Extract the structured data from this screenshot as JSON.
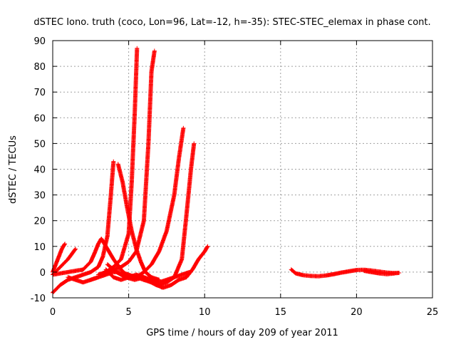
{
  "chart_data": {
    "type": "scatter",
    "title": "dSTEC Iono. truth (coco, Lon=96, Lat=-12, h=-35): STEC-STEC_elemax in phase cont.",
    "xlabel": "GPS time / hours of day 209 of year 2011",
    "ylabel": "dSTEC  / TECUs",
    "xlim": [
      0,
      25
    ],
    "ylim": [
      -10,
      90
    ],
    "xticks": [
      0,
      5,
      10,
      15,
      20,
      25
    ],
    "xtick_labels": [
      "0",
      "5",
      "10",
      "15",
      "20",
      "25"
    ],
    "yticks": [
      -10,
      0,
      10,
      20,
      30,
      40,
      50,
      60,
      70,
      80,
      90
    ],
    "ytick_labels": [
      "-10",
      "0",
      "10",
      "20",
      "30",
      "40",
      "50",
      "60",
      "70",
      "80",
      "90"
    ],
    "grid": true,
    "marker": "+",
    "color": "#ff0000",
    "series": [
      {
        "x": [
          0.0,
          0.2,
          0.4,
          0.6,
          0.8
        ],
        "y": [
          0,
          3,
          6,
          9,
          11
        ]
      },
      {
        "x": [
          0.0,
          0.5,
          1.0,
          1.5
        ],
        "y": [
          -1,
          2,
          5,
          9
        ]
      },
      {
        "x": [
          0.0,
          0.5,
          1.0,
          1.5,
          2.0,
          2.5,
          3.0,
          3.3,
          3.6,
          3.8,
          4.0
        ],
        "y": [
          -8,
          -5,
          -3,
          -2,
          -1,
          0,
          2,
          6,
          14,
          28,
          43
        ]
      },
      {
        "x": [
          0.0,
          1.0,
          2.0,
          2.5,
          2.8,
          3.0,
          3.2,
          3.5,
          4.0,
          4.5,
          5.0,
          5.5
        ],
        "y": [
          -1,
          0,
          1,
          4,
          8,
          11,
          13,
          10,
          5,
          1,
          -2,
          -2
        ]
      },
      {
        "x": [
          1.0,
          1.5,
          2.0,
          2.5,
          3.0,
          3.5,
          4.0,
          4.5,
          5.0,
          5.5,
          6.0,
          7.0
        ],
        "y": [
          -2,
          -3,
          -4,
          -3,
          -2,
          -1,
          0,
          0,
          -1,
          -2,
          -3,
          -3
        ]
      },
      {
        "x": [
          3.5,
          4.0,
          4.5,
          5.0,
          5.5,
          6.0,
          6.5,
          7.0,
          7.5,
          8.0,
          8.5,
          9.0
        ],
        "y": [
          1,
          -2,
          -3,
          -2,
          -1,
          -2,
          -3,
          -4,
          -3,
          -2,
          -1,
          0
        ]
      },
      {
        "x": [
          4.3,
          4.6,
          4.9,
          5.2,
          5.5,
          5.8,
          6.1,
          6.5,
          7.0
        ],
        "y": [
          42,
          35,
          25,
          16,
          9,
          4,
          0,
          -2,
          -3
        ]
      },
      {
        "x": [
          2.5,
          3.0,
          3.5,
          4.0,
          4.5,
          5.0,
          5.2,
          5.4,
          5.55
        ],
        "y": [
          -3,
          -2,
          0,
          2,
          5,
          15,
          35,
          62,
          87
        ]
      },
      {
        "x": [
          3.0,
          3.5,
          4.0,
          4.5,
          5.0,
          5.5,
          6.0,
          6.3,
          6.5,
          6.7
        ],
        "y": [
          -1,
          0,
          1,
          2,
          4,
          8,
          20,
          50,
          78,
          86
        ]
      },
      {
        "x": [
          5.5,
          6.0,
          6.5,
          7.0,
          7.5,
          8.0,
          8.3,
          8.6
        ],
        "y": [
          -2,
          0,
          3,
          8,
          16,
          30,
          44,
          56
        ]
      },
      {
        "x": [
          6.0,
          6.5,
          7.0,
          7.5,
          8.0,
          8.5,
          8.8,
          9.1,
          9.3
        ],
        "y": [
          -3,
          -4,
          -5,
          -4,
          -2,
          5,
          22,
          40,
          50
        ]
      },
      {
        "x": [
          6.2,
          6.8,
          7.3,
          7.8,
          8.3,
          8.8,
          9.2,
          9.6,
          10.0,
          10.2
        ],
        "y": [
          -3,
          -5,
          -6,
          -5,
          -3,
          -2,
          1,
          5,
          8,
          10
        ]
      },
      {
        "x": [
          3.6,
          4.2,
          4.8,
          5.4,
          6.0,
          6.6,
          7.2
        ],
        "y": [
          3,
          0,
          -2,
          -3,
          -2,
          -4,
          -6
        ]
      },
      {
        "x": [
          15.7,
          16.0,
          16.5,
          17.0,
          17.5,
          18.0,
          18.5,
          19.0,
          19.5,
          20.0,
          20.5,
          21.0,
          21.5,
          22.0,
          22.5,
          22.8
        ],
        "y": [
          1,
          -0.5,
          -1.2,
          -1.5,
          -1.6,
          -1.3,
          -0.8,
          -0.2,
          0.3,
          0.8,
          0.9,
          0.6,
          0.2,
          -0.2,
          -0.4,
          -0.3
        ]
      },
      {
        "x": [
          20.5,
          21.0,
          21.5,
          22.0,
          22.5
        ],
        "y": [
          0.5,
          0.0,
          -0.5,
          -0.8,
          -0.5
        ]
      }
    ]
  }
}
